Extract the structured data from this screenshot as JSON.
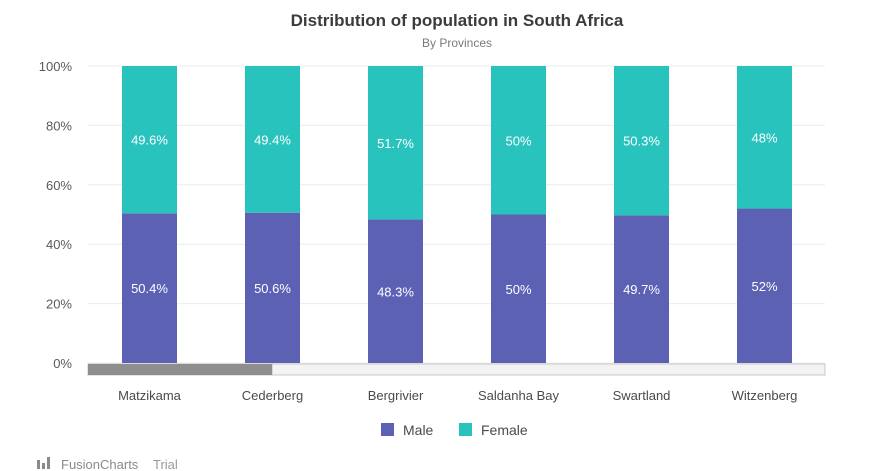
{
  "chart_data": {
    "type": "bar",
    "stacked": "percent",
    "title": "Distribution of population in South Africa",
    "subtitle": "By Provinces",
    "categories": [
      "Matzikama",
      "Cederberg",
      "Bergrivier",
      "Saldanha Bay",
      "Swartland",
      "Witzenberg"
    ],
    "series": [
      {
        "name": "Male",
        "color": "#5c61b4",
        "values": [
          50.4,
          50.6,
          48.3,
          50,
          49.7,
          52
        ],
        "labels": [
          "50.4%",
          "50.6%",
          "48.3%",
          "50%",
          "49.7%",
          "52%"
        ]
      },
      {
        "name": "Female",
        "color": "#29c3be",
        "values": [
          49.6,
          49.4,
          51.7,
          50,
          50.3,
          48
        ],
        "labels": [
          "49.6%",
          "49.4%",
          "51.7%",
          "50%",
          "50.3%",
          "48%"
        ]
      }
    ],
    "ylim": [
      0,
      100
    ],
    "yticks": [
      0,
      20,
      40,
      60,
      80,
      100
    ],
    "ytick_labels": [
      "0%",
      "20%",
      "40%",
      "60%",
      "80%",
      "100%"
    ],
    "xlabel": "",
    "ylabel": "",
    "grid": true,
    "legend_position": "bottom"
  },
  "scrollbar": {
    "position": 0,
    "visible_fraction": 0.25
  },
  "branding": {
    "name": "FusionCharts",
    "suffix": "Trial"
  }
}
